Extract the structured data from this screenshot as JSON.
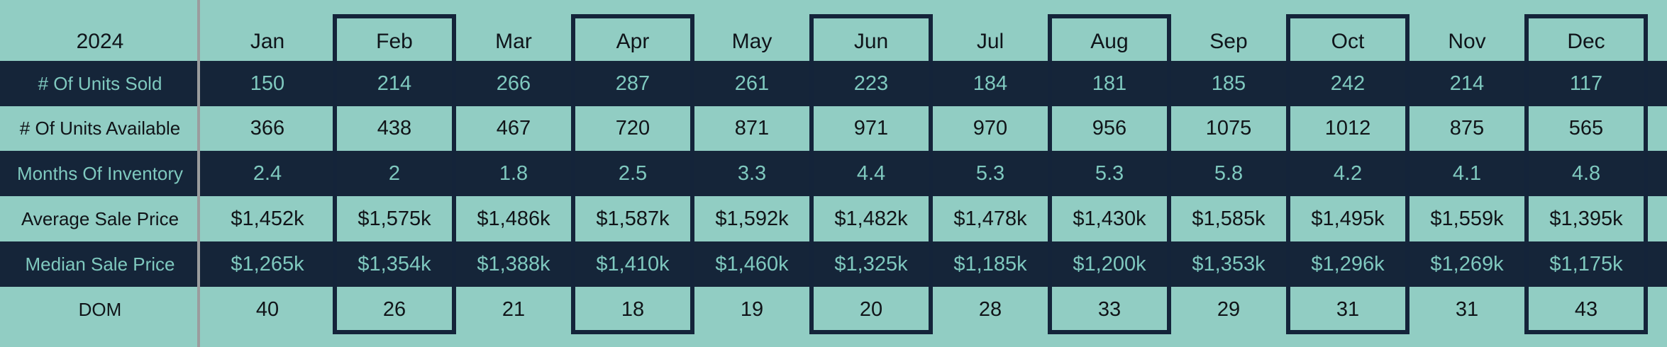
{
  "chart_data": {
    "type": "table",
    "title": "2024",
    "columns": [
      "Jan",
      "Feb",
      "Mar",
      "Apr",
      "May",
      "Jun",
      "Jul",
      "Aug",
      "Sep",
      "Oct",
      "Nov",
      "Dec"
    ],
    "highlighted_columns": [
      "Feb",
      "Apr",
      "Jun",
      "Aug",
      "Oct",
      "Dec"
    ],
    "rows": [
      {
        "label": "# Of Units Sold",
        "theme": "dark",
        "values": [
          "150",
          "214",
          "266",
          "287",
          "261",
          "223",
          "184",
          "181",
          "185",
          "242",
          "214",
          "117"
        ]
      },
      {
        "label": "# Of Units Available",
        "theme": "light",
        "values": [
          "366",
          "438",
          "467",
          "720",
          "871",
          "971",
          "970",
          "956",
          "1075",
          "1012",
          "875",
          "565"
        ]
      },
      {
        "label": "Months Of Inventory",
        "theme": "dark",
        "values": [
          "2.4",
          "2",
          "1.8",
          "2.5",
          "3.3",
          "4.4",
          "5.3",
          "5.3",
          "5.8",
          "4.2",
          "4.1",
          "4.8"
        ]
      },
      {
        "label": "Average Sale Price",
        "theme": "light",
        "values": [
          "$1,452k",
          "$1,575k",
          "$1,486k",
          "$1,587k",
          "$1,592k",
          "$1,482k",
          "$1,478k",
          "$1,430k",
          "$1,585k",
          "$1,495k",
          "$1,559k",
          "$1,395k"
        ]
      },
      {
        "label": "Median Sale Price",
        "theme": "dark",
        "values": [
          "$1,265k",
          "$1,354k",
          "$1,388k",
          "$1,410k",
          "$1,460k",
          "$1,325k",
          "$1,185k",
          "$1,200k",
          "$1,353k",
          "$1,296k",
          "$1,269k",
          "$1,175k"
        ]
      },
      {
        "label": "DOM",
        "theme": "light",
        "values": [
          "40",
          "26",
          "21",
          "18",
          "19",
          "20",
          "28",
          "33",
          "29",
          "31",
          "31",
          "43"
        ]
      }
    ]
  },
  "colors": {
    "light_teal": "#91cdc3",
    "dark_navy": "#152539",
    "teal_text": "#7fc9bf",
    "dark_text": "#101418",
    "highlight_border": "#14243a",
    "divider_gray": "#9b9d9e"
  }
}
